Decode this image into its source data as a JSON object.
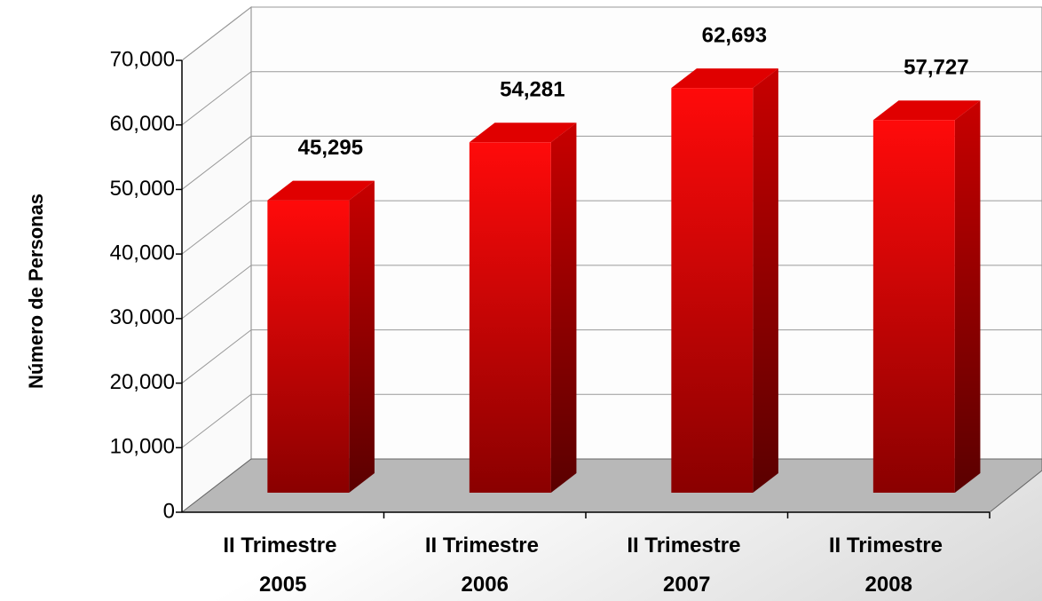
{
  "chart_data": {
    "type": "bar3d",
    "y_label": "Número de Personas",
    "categories": [
      "II Trimestre 2005",
      "II Trimestre 2006",
      "II Trimestre 2007",
      "II Trimestre 2008"
    ],
    "values": [
      45295,
      54281,
      62693,
      57727
    ],
    "value_labels": [
      "45,295",
      "54,281",
      "62,693",
      "57,727"
    ],
    "color": "#ff0000",
    "ylim": [
      0,
      70000
    ],
    "yticks": [
      0,
      {
        "value": 10000,
        "label": "10,000"
      },
      {
        "value": 20000,
        "label": "20,000"
      },
      {
        "value": 30000,
        "label": "30,000"
      },
      {
        "value": 40000,
        "label": "40,000"
      },
      {
        "value": 50000,
        "label": "50,000"
      },
      {
        "value": 60000,
        "label": "60,000"
      },
      {
        "value": 70000,
        "label": "70,000"
      }
    ],
    "grid": true
  }
}
